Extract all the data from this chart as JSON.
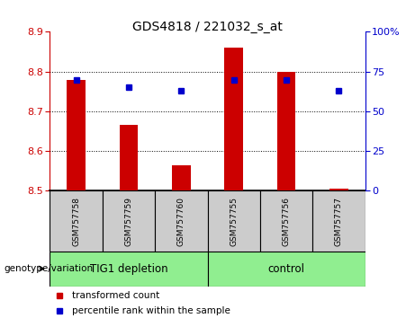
{
  "title": "GDS4818 / 221032_s_at",
  "samples": [
    "GSM757758",
    "GSM757759",
    "GSM757760",
    "GSM757755",
    "GSM757756",
    "GSM757757"
  ],
  "transformed_count": [
    8.78,
    8.665,
    8.565,
    8.86,
    8.8,
    8.505
  ],
  "percentile_rank": [
    70,
    65,
    63,
    70,
    70,
    63
  ],
  "baseline": 8.5,
  "ylim_left": [
    8.5,
    8.9
  ],
  "ylim_right": [
    0,
    100
  ],
  "yticks_left": [
    8.5,
    8.6,
    8.7,
    8.8,
    8.9
  ],
  "yticks_right": [
    0,
    25,
    50,
    75,
    100
  ],
  "group1_label": "TIG1 depletion",
  "group2_label": "control",
  "group1_indices": [
    0,
    1,
    2
  ],
  "group2_indices": [
    3,
    4,
    5
  ],
  "group1_color": "#90ee90",
  "group2_color": "#90ee90",
  "bar_color": "#cc0000",
  "dot_color": "#0000cc",
  "tick_color_left": "#cc0000",
  "tick_color_right": "#0000cc",
  "genotype_label": "genotype/variation",
  "legend_bar_label": "transformed count",
  "legend_dot_label": "percentile rank within the sample",
  "bar_width": 0.35,
  "group_box_color": "#cccccc"
}
